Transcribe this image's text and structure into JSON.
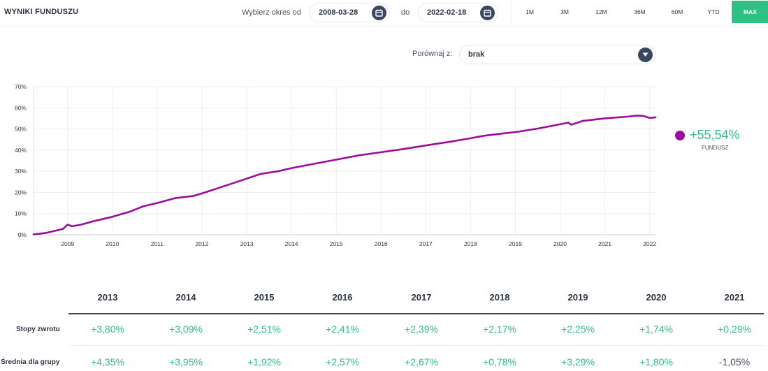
{
  "header": {
    "title": "WYNIKI FUNDUSZU",
    "range_from_label": "Wybierz okres od",
    "date_from": "2008-03-28",
    "range_to_label": "do",
    "date_to": "2022-02-18",
    "periods": [
      "1M",
      "3M",
      "12M",
      "36M",
      "60M",
      "YTD",
      "MAX"
    ],
    "active_period": "MAX"
  },
  "compare": {
    "label": "Porównaj z:",
    "value": "brak"
  },
  "legend": {
    "value": "+55,54%",
    "name": "FUNDUSZ",
    "color": "#9b0b9e"
  },
  "colors": {
    "accent": "#2cc283",
    "dark": "#3b4660",
    "series": "#9b0b9e"
  },
  "chart_data": {
    "type": "line",
    "y_ticks": [
      "0%",
      "10%",
      "20%",
      "30%",
      "40%",
      "50%",
      "60%",
      "70%"
    ],
    "ylim": [
      0,
      70
    ],
    "xlim": [
      2008.24,
      2022.13
    ],
    "x_ticks": [
      2009,
      2010,
      2011,
      2012,
      2013,
      2014,
      2015,
      2016,
      2017,
      2018,
      2019,
      2020,
      2021,
      2022
    ],
    "grid": true,
    "series": [
      {
        "name": "FUNDUSZ",
        "color": "#9b0b9e",
        "x": [
          2008.24,
          2008.5,
          2008.75,
          2008.9,
          2009.0,
          2009.1,
          2009.3,
          2009.6,
          2010.0,
          2010.4,
          2010.7,
          2011.0,
          2011.4,
          2011.8,
          2012.0,
          2012.5,
          2013.0,
          2013.3,
          2013.7,
          2014.0,
          2014.5,
          2015.0,
          2015.5,
          2016.0,
          2016.5,
          2017.0,
          2017.5,
          2018.0,
          2018.3,
          2018.7,
          2019.0,
          2019.5,
          2020.0,
          2020.18,
          2020.25,
          2020.5,
          2021.0,
          2021.5,
          2021.7,
          2021.85,
          2022.0,
          2022.13
        ],
        "y": [
          0.2,
          0.8,
          2.0,
          2.8,
          4.8,
          4.0,
          4.8,
          6.5,
          8.5,
          11.0,
          13.5,
          15.0,
          17.3,
          18.3,
          19.5,
          23.0,
          26.5,
          28.7,
          30.0,
          31.5,
          33.5,
          35.5,
          37.5,
          39.0,
          40.5,
          42.2,
          43.8,
          45.6,
          46.8,
          47.8,
          48.5,
          50.2,
          52.2,
          53.0,
          52.0,
          53.8,
          55.0,
          55.8,
          56.3,
          56.2,
          55.2,
          55.5
        ]
      }
    ]
  },
  "table": {
    "years": [
      "2013",
      "2014",
      "2015",
      "2016",
      "2017",
      "2018",
      "2019",
      "2020",
      "2021"
    ],
    "rows": [
      {
        "label": "Stopy zwrotu",
        "values": [
          "+3,80%",
          "+3,09%",
          "+2,51%",
          "+2,41%",
          "+2,39%",
          "+2,17%",
          "+2,25%",
          "+1,74%",
          "+0,29%"
        ]
      },
      {
        "label": "Średnia dla grupy",
        "values": [
          "+4,35%",
          "+3,95%",
          "+1,92%",
          "+2,57%",
          "+2,67%",
          "+0,78%",
          "+3,29%",
          "+1,80%",
          "-1,05%"
        ]
      }
    ]
  }
}
